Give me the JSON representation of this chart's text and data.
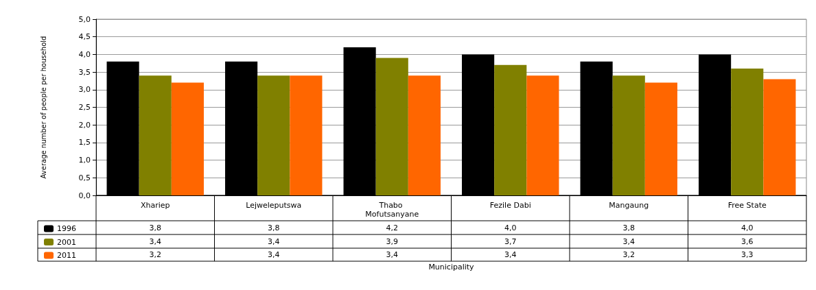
{
  "chart_data": {
    "type": "bar",
    "ylabel": "Average number of people per household",
    "annotations": [
      "Municipality"
    ],
    "categories": [
      "Xhariep",
      "Lejweleputswa",
      "Thabo Mofutsanyane",
      "Fezile Dabi",
      "Mangaung",
      "Free State"
    ],
    "series": [
      {
        "name": "1996",
        "color": "#000000",
        "values": [
          3.8,
          3.8,
          4.2,
          4.0,
          3.8,
          4.0
        ],
        "value_labels": [
          "3,8",
          "3,8",
          "4,2",
          "4,0",
          "3,8",
          "4,0"
        ]
      },
      {
        "name": "2001",
        "color": "#808000",
        "values": [
          3.4,
          3.4,
          3.9,
          3.7,
          3.4,
          3.6
        ],
        "value_labels": [
          "3,4",
          "3,4",
          "3,9",
          "3,7",
          "3,4",
          "3,6"
        ]
      },
      {
        "name": "2011",
        "color": "#ff6600",
        "values": [
          3.2,
          3.4,
          3.4,
          3.4,
          3.2,
          3.3
        ],
        "value_labels": [
          "3,2",
          "3,4",
          "3,4",
          "3,4",
          "3,2",
          "3,3"
        ]
      }
    ],
    "ylim": [
      0,
      5
    ],
    "yticks": [
      {
        "value": 0,
        "label": "0,0"
      },
      {
        "value": 0.5,
        "label": "0,5"
      },
      {
        "value": 1,
        "label": "1,0"
      },
      {
        "value": 1.5,
        "label": "1,5"
      },
      {
        "value": 2,
        "label": "2,0"
      },
      {
        "value": 2.5,
        "label": "2,5"
      },
      {
        "value": 3,
        "label": "3,0"
      },
      {
        "value": 3.5,
        "label": "3,5"
      },
      {
        "value": 4,
        "label": "4,0"
      },
      {
        "value": 4.5,
        "label": "4,5"
      },
      {
        "value": 5,
        "label": "5,0"
      }
    ],
    "grid": "y",
    "legend": "bottom"
  }
}
